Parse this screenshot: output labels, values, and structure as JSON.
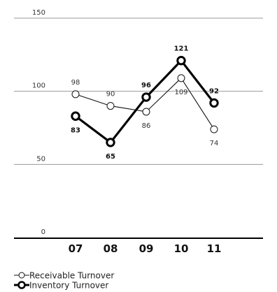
{
  "chart_data": {
    "type": "line",
    "categories": [
      "07",
      "08",
      "09",
      "10",
      "11"
    ],
    "ylim": [
      0,
      150
    ],
    "y_ticks": [
      0,
      50,
      100,
      150
    ],
    "grid": true,
    "legend_position": "bottom-left",
    "series": [
      {
        "name": "Receivable Turnover",
        "values": [
          98,
          90,
          86,
          109,
          74
        ],
        "labels": [
          "98",
          "90",
          "86",
          "109",
          "74"
        ],
        "label_positions": [
          "above",
          "above",
          "below",
          "below",
          "below"
        ],
        "style": "thin",
        "color": "#111111"
      },
      {
        "name": "Inventory Turnover",
        "values": [
          83,
          65,
          96,
          121,
          92
        ],
        "labels": [
          "83",
          "65",
          "96",
          "121",
          "92"
        ],
        "label_positions": [
          "below",
          "below",
          "above",
          "above",
          "above"
        ],
        "style": "thick",
        "color": "#000000"
      }
    ]
  }
}
